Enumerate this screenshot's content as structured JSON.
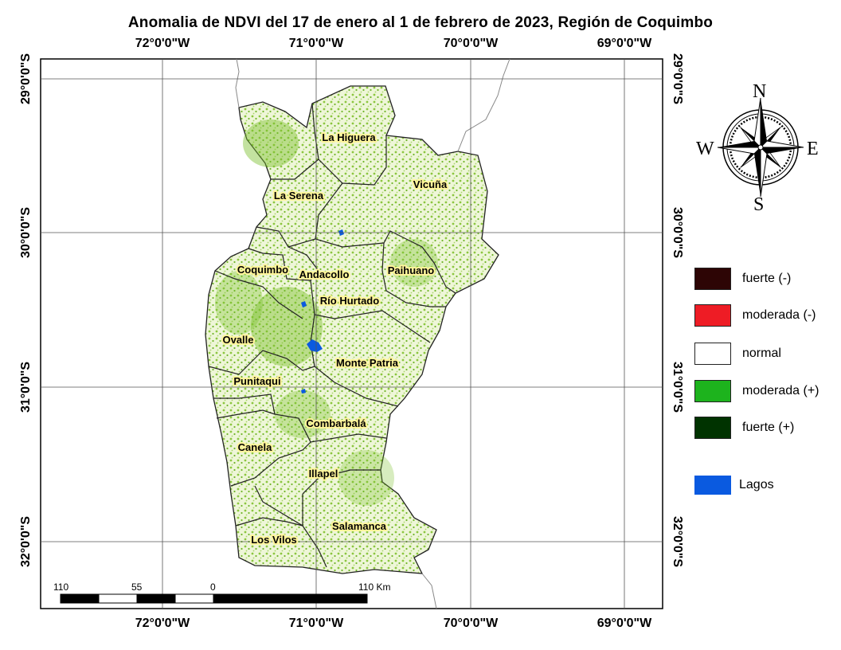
{
  "title": "Anomalia de NDVI del 17 de enero al 1 de febrero de 2023, Región de Coquimbo",
  "longitudes": [
    "72°0'0\"W",
    "71°0'0\"W",
    "70°0'0\"W",
    "69°0'0\"W"
  ],
  "latitudes": [
    "29°0'0\"S",
    "30°0'0\"S",
    "31°0'0\"S",
    "32°0'0\"S"
  ],
  "municipalities": [
    "La Higuera",
    "Vicuña",
    "La Serena",
    "Paihuano",
    "Coquimbo",
    "Andacollo",
    "Río Hurtado",
    "Ovalle",
    "Monte Patria",
    "Punitaqui",
    "Combarbalá",
    "Canela",
    "Illapel",
    "Salamanca",
    "Los Vilos"
  ],
  "compass": {
    "n": "N",
    "s": "S",
    "e": "E",
    "w": "W"
  },
  "legend": [
    {
      "label": "fuerte (-)",
      "color": "#2d0505"
    },
    {
      "label": "moderada (-)",
      "color": "#ee1c25"
    },
    {
      "label": "normal",
      "color": "#ffffff"
    },
    {
      "label": "moderada (+)",
      "color": "#1db31d"
    },
    {
      "label": "fuerte (+)",
      "color": "#003300"
    },
    {
      "label": "Lagos",
      "color": "#0a5ae0"
    }
  ],
  "scale": {
    "labels": [
      "110",
      "55",
      "0",
      "110 Km"
    ]
  },
  "colors": {
    "land": "#e9f3cf",
    "vegetation": "#7cc02e",
    "border": "#333333",
    "grid": "#555555"
  }
}
